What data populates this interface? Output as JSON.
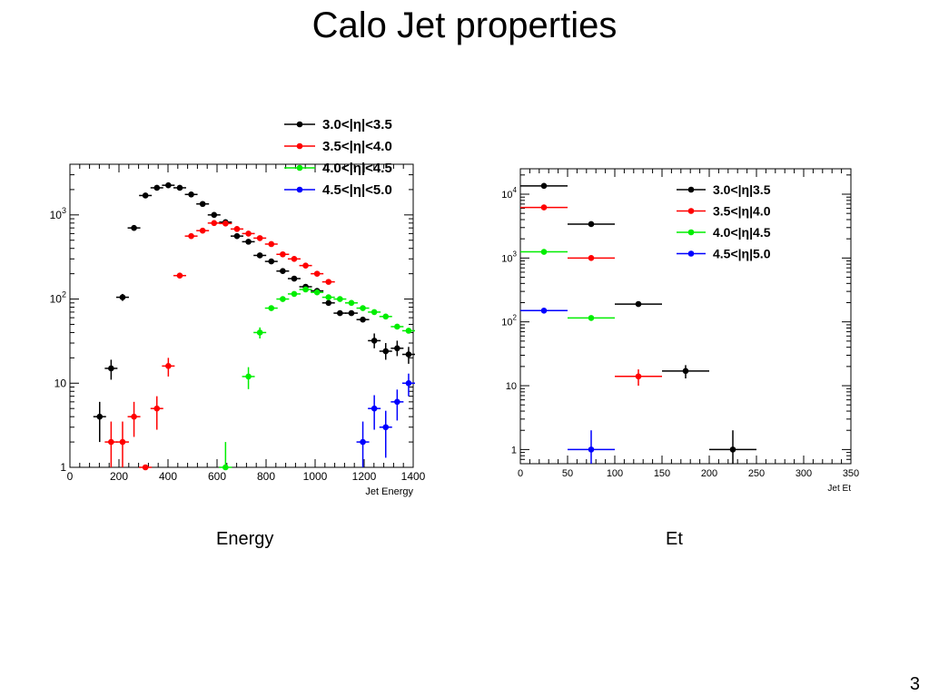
{
  "title": "Calo Jet properties",
  "captions": {
    "left": "Energy",
    "right": "Et"
  },
  "page_number": "3",
  "chart_data": [
    {
      "type": "scatter",
      "xlabel": "Jet Energy",
      "ylabel": "",
      "xlim": [
        0,
        1500
      ],
      "ylim": [
        1,
        4000
      ],
      "yscale": "log",
      "xticks": [
        "0",
        "200",
        "400",
        "600",
        "800",
        "1000",
        "1200",
        "1400"
      ],
      "yticks": [
        {
          "value": 1,
          "base": "1",
          "exp": ""
        },
        {
          "value": 10,
          "base": "10",
          "exp": ""
        },
        {
          "value": 100,
          "base": "10",
          "exp": "2"
        },
        {
          "value": 1000,
          "base": "10",
          "exp": "3"
        }
      ],
      "legend_position": "top-right",
      "series": [
        {
          "name": "3.0<|η|<3.5",
          "color": "#000000",
          "points": [
            {
              "x": 130,
              "y": 4,
              "lo": 2,
              "hi": 6
            },
            {
              "x": 180,
              "y": 15,
              "lo": 11,
              "hi": 19
            },
            {
              "x": 230,
              "y": 105,
              "lo": 95,
              "hi": 115
            },
            {
              "x": 280,
              "y": 700,
              "lo": 670,
              "hi": 730
            },
            {
              "x": 330,
              "y": 1700
            },
            {
              "x": 380,
              "y": 2100
            },
            {
              "x": 430,
              "y": 2250
            },
            {
              "x": 480,
              "y": 2100
            },
            {
              "x": 530,
              "y": 1750
            },
            {
              "x": 580,
              "y": 1350
            },
            {
              "x": 630,
              "y": 1000
            },
            {
              "x": 680,
              "y": 820
            },
            {
              "x": 730,
              "y": 560
            },
            {
              "x": 780,
              "y": 480
            },
            {
              "x": 830,
              "y": 330
            },
            {
              "x": 880,
              "y": 280
            },
            {
              "x": 930,
              "y": 215
            },
            {
              "x": 980,
              "y": 175
            },
            {
              "x": 1030,
              "y": 140
            },
            {
              "x": 1080,
              "y": 125
            },
            {
              "x": 1130,
              "y": 90
            },
            {
              "x": 1180,
              "y": 68
            },
            {
              "x": 1230,
              "y": 68
            },
            {
              "x": 1280,
              "y": 57
            },
            {
              "x": 1330,
              "y": 32,
              "lo": 26,
              "hi": 39
            },
            {
              "x": 1380,
              "y": 24,
              "lo": 19,
              "hi": 30
            },
            {
              "x": 1430,
              "y": 26,
              "lo": 21,
              "hi": 32
            },
            {
              "x": 1480,
              "y": 22,
              "lo": 17,
              "hi": 27
            }
          ]
        },
        {
          "name": "3.5<|η|<4.0",
          "color": "#ff0000",
          "points": [
            {
              "x": 180,
              "y": 2,
              "lo": 1,
              "hi": 3.5
            },
            {
              "x": 230,
              "y": 2,
              "lo": 1,
              "hi": 3.5
            },
            {
              "x": 280,
              "y": 4,
              "lo": 2.3,
              "hi": 6
            },
            {
              "x": 330,
              "y": 1
            },
            {
              "x": 380,
              "y": 5,
              "lo": 2.8,
              "hi": 7
            },
            {
              "x": 430,
              "y": 16,
              "lo": 12,
              "hi": 20
            },
            {
              "x": 480,
              "y": 190
            },
            {
              "x": 530,
              "y": 560
            },
            {
              "x": 580,
              "y": 650
            },
            {
              "x": 630,
              "y": 800
            },
            {
              "x": 680,
              "y": 790
            },
            {
              "x": 730,
              "y": 680
            },
            {
              "x": 780,
              "y": 600
            },
            {
              "x": 830,
              "y": 530
            },
            {
              "x": 880,
              "y": 450
            },
            {
              "x": 930,
              "y": 340
            },
            {
              "x": 980,
              "y": 300
            },
            {
              "x": 1030,
              "y": 250
            },
            {
              "x": 1080,
              "y": 200
            },
            {
              "x": 1130,
              "y": 160
            }
          ]
        },
        {
          "name": "4.0<|η|<4.5",
          "color": "#00ee00",
          "points": [
            {
              "x": 680,
              "y": 1,
              "lo": 1,
              "hi": 2
            },
            {
              "x": 780,
              "y": 12,
              "lo": 8.5,
              "hi": 15.5
            },
            {
              "x": 830,
              "y": 40,
              "lo": 34,
              "hi": 46
            },
            {
              "x": 880,
              "y": 78
            },
            {
              "x": 930,
              "y": 100
            },
            {
              "x": 980,
              "y": 115
            },
            {
              "x": 1030,
              "y": 130
            },
            {
              "x": 1080,
              "y": 120
            },
            {
              "x": 1130,
              "y": 105
            },
            {
              "x": 1180,
              "y": 100
            },
            {
              "x": 1230,
              "y": 90
            },
            {
              "x": 1280,
              "y": 78
            },
            {
              "x": 1330,
              "y": 70
            },
            {
              "x": 1380,
              "y": 62
            },
            {
              "x": 1430,
              "y": 47
            },
            {
              "x": 1480,
              "y": 42
            }
          ]
        },
        {
          "name": "4.5<|η|<5.0",
          "color": "#0000ff",
          "points": [
            {
              "x": 1280,
              "y": 2,
              "lo": 1,
              "hi": 3.5
            },
            {
              "x": 1330,
              "y": 5,
              "lo": 2.8,
              "hi": 7.2
            },
            {
              "x": 1380,
              "y": 3,
              "lo": 1.3,
              "hi": 4.7
            },
            {
              "x": 1430,
              "y": 6,
              "lo": 3.6,
              "hi": 8.4
            },
            {
              "x": 1480,
              "y": 10,
              "lo": 7,
              "hi": 13
            }
          ]
        }
      ]
    },
    {
      "type": "scatter",
      "xlabel": "Jet Et",
      "ylabel": "",
      "xlim": [
        0,
        350
      ],
      "ylim": [
        0.6,
        25000
      ],
      "yscale": "log",
      "xticks": [
        "0",
        "50",
        "100",
        "150",
        "200",
        "250",
        "300",
        "350"
      ],
      "yticks": [
        {
          "value": 1,
          "base": "1",
          "exp": ""
        },
        {
          "value": 10,
          "base": "10",
          "exp": ""
        },
        {
          "value": 100,
          "base": "10",
          "exp": "2"
        },
        {
          "value": 1000,
          "base": "10",
          "exp": "3"
        },
        {
          "value": 10000,
          "base": "10",
          "exp": "4"
        }
      ],
      "legend_position": "top-right",
      "series": [
        {
          "name": "3.0<|η|3.5",
          "color": "#000000",
          "points": [
            {
              "x": 25,
              "y": 13500,
              "xw": 25
            },
            {
              "x": 75,
              "y": 3400,
              "xw": 25
            },
            {
              "x": 125,
              "y": 190,
              "xw": 25
            },
            {
              "x": 175,
              "y": 17,
              "xw": 25,
              "lo": 13,
              "hi": 21
            },
            {
              "x": 225,
              "y": 1,
              "xw": 25,
              "lo": 0.6,
              "hi": 2
            }
          ]
        },
        {
          "name": "3.5<|η|4.0",
          "color": "#ff0000",
          "points": [
            {
              "x": 25,
              "y": 6200,
              "xw": 25
            },
            {
              "x": 75,
              "y": 1000,
              "xw": 25
            },
            {
              "x": 125,
              "y": 14,
              "xw": 25,
              "lo": 10,
              "hi": 18
            }
          ]
        },
        {
          "name": "4.0<|η|4.5",
          "color": "#00ee00",
          "points": [
            {
              "x": 25,
              "y": 1250,
              "xw": 25
            },
            {
              "x": 75,
              "y": 115,
              "xw": 25
            }
          ]
        },
        {
          "name": "4.5<|η|5.0",
          "color": "#0000ff",
          "points": [
            {
              "x": 25,
              "y": 150,
              "xw": 25
            },
            {
              "x": 75,
              "y": 1,
              "xw": 25,
              "lo": 0.6,
              "hi": 2
            }
          ]
        }
      ]
    }
  ]
}
